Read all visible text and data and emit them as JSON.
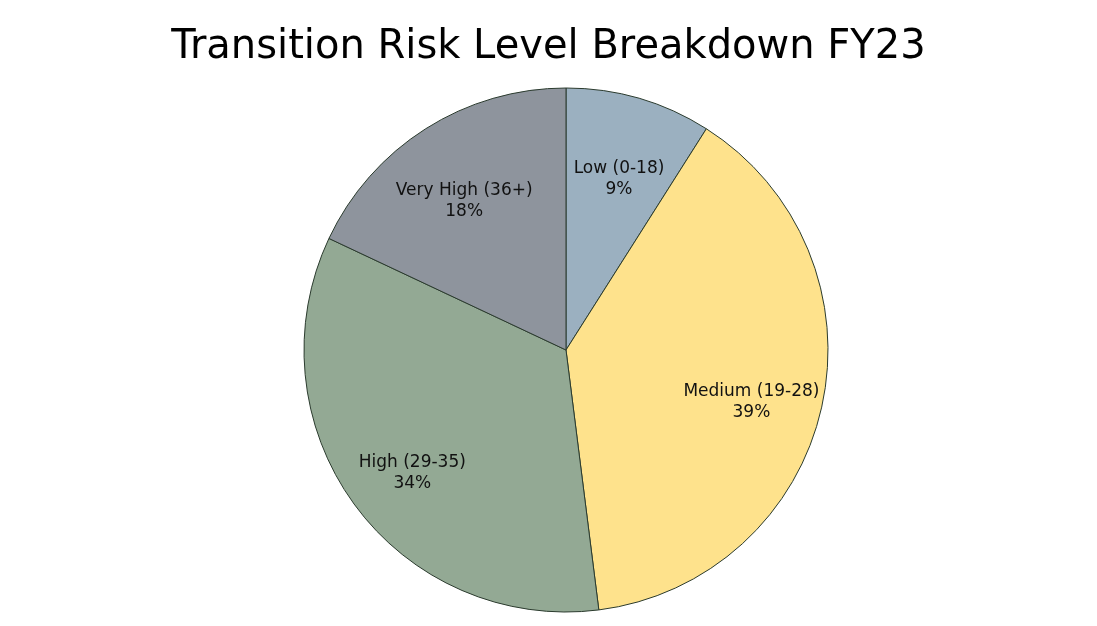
{
  "chart_data": {
    "type": "pie",
    "title": "Transition Risk Level Breakdown FY23",
    "categories": [
      "Low (0-18)",
      "Medium (19-28)",
      "High (29-35)",
      "Very High (36+)"
    ],
    "values": [
      9,
      39,
      34,
      18
    ],
    "value_labels": [
      "9%",
      "39%",
      "34%",
      "18%"
    ],
    "colors": [
      "#9bb0c0",
      "#fee28c",
      "#93a994",
      "#8e949d"
    ]
  }
}
